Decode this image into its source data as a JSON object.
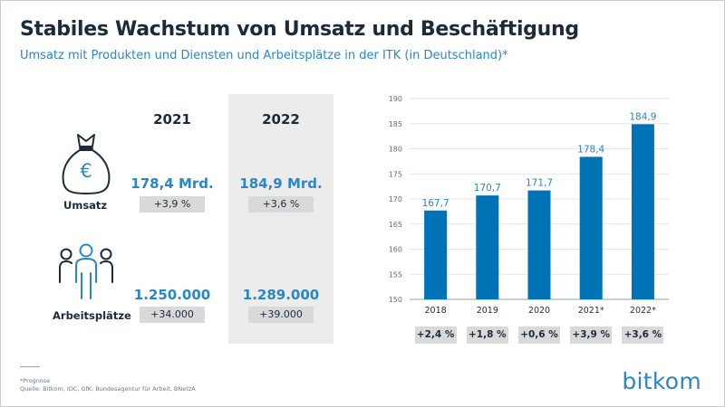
{
  "title": "Stabiles Wachstum von Umsatz und Beschäftigung",
  "subtitle": "Umsatz mit Produkten und Diensten und Arbeitsplätze in der ITK (in Deutschland)*",
  "kpi": {
    "years": [
      "2021",
      "2022"
    ],
    "umsatz": {
      "label": "Umsatz",
      "icon": "money-bag-euro-icon",
      "values": [
        "178,4 Mrd.",
        "184,9 Mrd."
      ],
      "changes": [
        "+3,9 %",
        "+3,6 %"
      ]
    },
    "arbeitsplaetze": {
      "label": "Arbeitsplätze",
      "icon": "people-group-icon",
      "values": [
        "1.250.000",
        "1.289.000"
      ],
      "changes": [
        "+34.000",
        "+39.000"
      ]
    }
  },
  "chart_data": {
    "type": "bar",
    "categories": [
      "2018",
      "2019",
      "2020",
      "2021*",
      "2022*"
    ],
    "values": [
      167.7,
      170.7,
      171.7,
      178.4,
      184.9
    ],
    "value_labels": [
      "167,7",
      "170,7",
      "171,7",
      "178,4",
      "184,9"
    ],
    "ylim": [
      150,
      190
    ],
    "yticks": [
      150,
      155,
      160,
      165,
      170,
      175,
      180,
      185,
      190
    ],
    "grid": true,
    "changes": [
      "+2,4 %",
      "+1,8 %",
      "+0,6 %",
      "+3,9 %",
      "+3,6 %"
    ],
    "xlabel": "",
    "ylabel": ""
  },
  "footnote": {
    "note": "*Prognose",
    "source": "Quelle: Bitkom, IDC, GfK, Bundesagentur für Arbeit, BNetzA"
  },
  "logo": "bitkom",
  "colors": {
    "accent": "#2a86c5",
    "bar": "#0073b7",
    "text": "#1d2a3a",
    "badge": "#d9d9d9",
    "highlight_column": "#ececec"
  }
}
